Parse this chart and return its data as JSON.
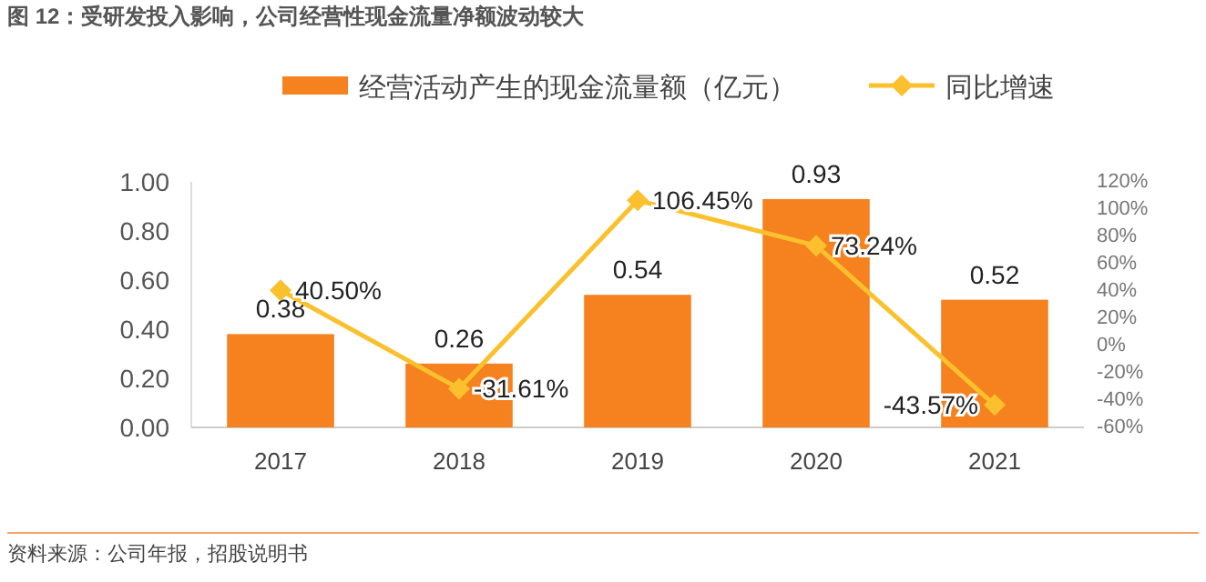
{
  "chart_data": {
    "type": "bar",
    "title": "图 12：受研发投入影响，公司经营性现金流量净额波动较大",
    "categories": [
      "2017",
      "2018",
      "2019",
      "2020",
      "2021"
    ],
    "series": [
      {
        "name": "经营活动产生的现金流量额（亿元）",
        "color": "#f5821f",
        "values": [
          0.38,
          0.26,
          0.54,
          0.93,
          0.52
        ],
        "value_labels": [
          "0.38",
          "0.26",
          "0.54",
          "0.93",
          "0.52"
        ]
      },
      {
        "name": "同比增速",
        "type": "line",
        "axis": "y2",
        "color": "#fbc02d",
        "marker": "diamond",
        "values": [
          40.5,
          -31.61,
          106.45,
          73.24,
          -43.57
        ],
        "value_labels": [
          "40.50%",
          "-31.61%",
          "106.45%",
          "73.24%",
          "-43.57%"
        ]
      }
    ],
    "ylim": [
      0,
      1
    ],
    "yticks": [
      {
        "value": 0,
        "label": "0.00"
      },
      {
        "value": 0.2,
        "label": "0.20"
      },
      {
        "value": 0.4,
        "label": "0.40"
      },
      {
        "value": 0.6,
        "label": "0.60"
      },
      {
        "value": 0.8,
        "label": "0.80"
      },
      {
        "value": 1,
        "label": "1.00"
      }
    ],
    "y2lim": [
      -60,
      120
    ],
    "y2ticks": [
      {
        "value": -60,
        "label": "-60%"
      },
      {
        "value": -40,
        "label": "-40%"
      },
      {
        "value": -20,
        "label": "-20%"
      },
      {
        "value": 0,
        "label": "0%"
      },
      {
        "value": 20,
        "label": "20%"
      },
      {
        "value": 40,
        "label": "40%"
      },
      {
        "value": 60,
        "label": "60%"
      },
      {
        "value": 80,
        "label": "80%"
      },
      {
        "value": 100,
        "label": "100%"
      },
      {
        "value": 120,
        "label": "120%"
      }
    ],
    "legend": "top",
    "annotations": [
      "资料来源：公司年报，招股说明书"
    ]
  }
}
